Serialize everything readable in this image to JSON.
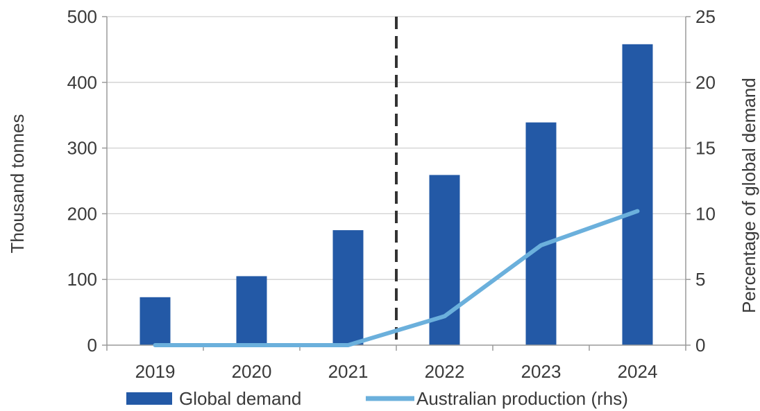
{
  "chart_data": {
    "type": "bar",
    "categories": [
      "2019",
      "2020",
      "2021",
      "2022",
      "2023",
      "2024"
    ],
    "series": [
      {
        "name": "Global demand",
        "type": "bar",
        "axis": "left",
        "values": [
          73,
          105,
          175,
          259,
          339,
          458
        ],
        "color": "#2359A6"
      },
      {
        "name": "Australian production (rhs)",
        "type": "line",
        "axis": "right",
        "values": [
          0,
          0,
          0,
          2.2,
          7.6,
          10.2
        ],
        "color": "#6BB0DC"
      }
    ],
    "ylabel": "Thousand tonnes",
    "y2label": "Percentage of global demand",
    "ylim": [
      0,
      500
    ],
    "y2lim": [
      0,
      25
    ],
    "yticks": [
      "0",
      "100",
      "200",
      "300",
      "400",
      "500"
    ],
    "y2ticks": [
      "0",
      "5",
      "10",
      "15",
      "20",
      "25"
    ],
    "divider_after_category": "2021",
    "grid": true,
    "legend_position": "bottom",
    "gridline_color": "#d0d0d0",
    "axis_color": "#9a9a9a",
    "divider_color": "#333333"
  }
}
